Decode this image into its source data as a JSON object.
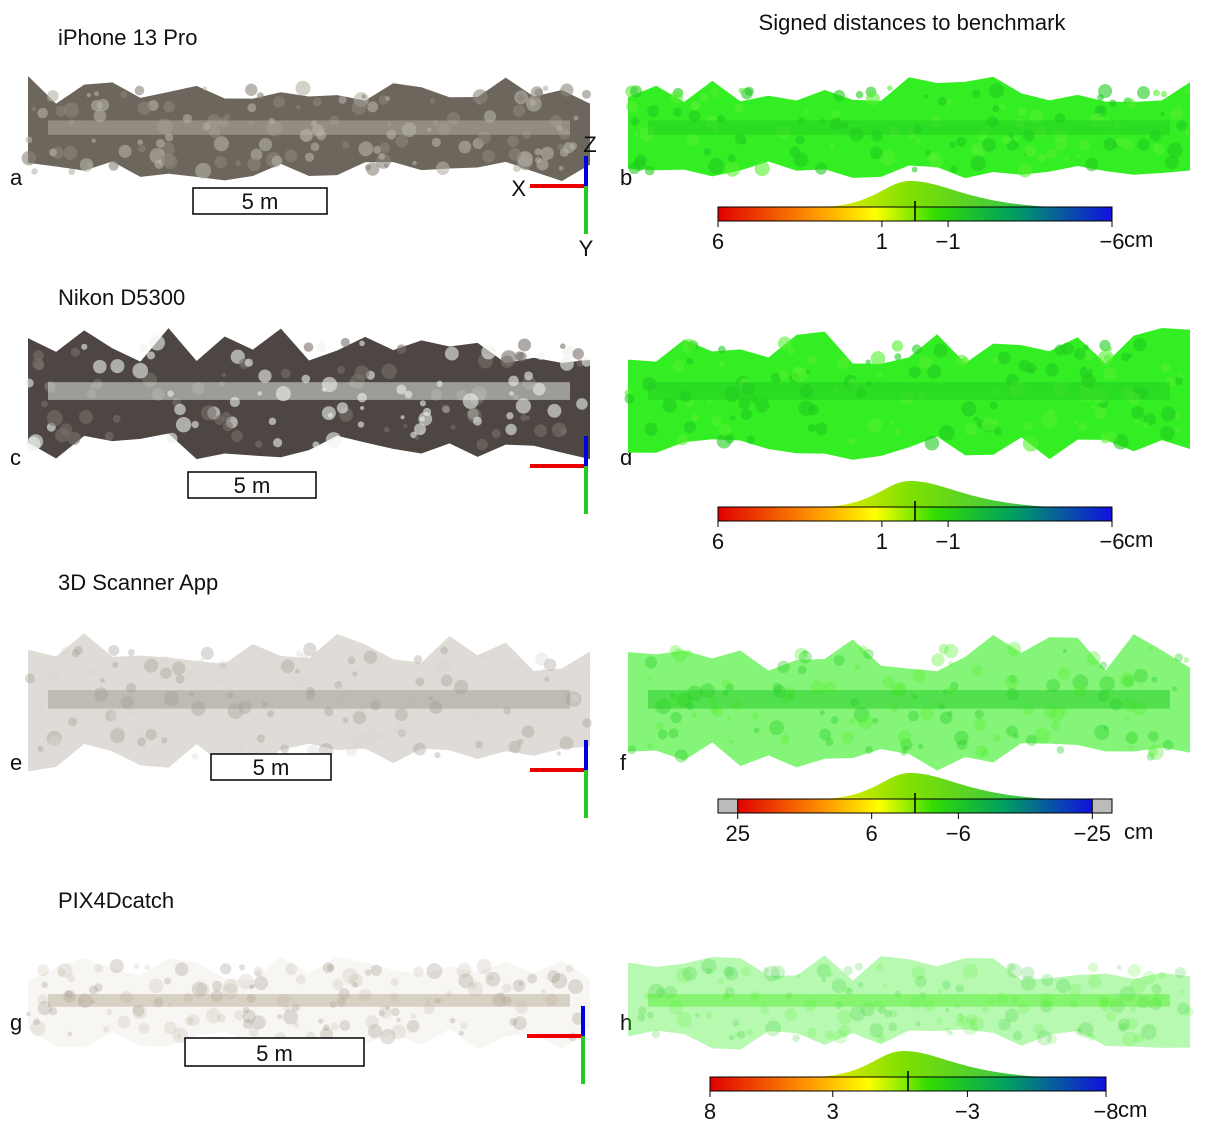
{
  "title": "Signed distances to benchmark",
  "rows": [
    {
      "name": "iPhone 13 Pro",
      "left_label": "a",
      "right_label": "b",
      "scale_bar": "5 m",
      "axes": {
        "x": "X",
        "y": "Y",
        "z": "Z"
      },
      "colorbar": {
        "ticks": [
          "6",
          "1",
          "−1",
          "−6"
        ],
        "unit": "cm"
      }
    },
    {
      "name": "Nikon D5300",
      "left_label": "c",
      "right_label": "d",
      "scale_bar": "5 m",
      "colorbar": {
        "ticks": [
          "6",
          "1",
          "−1",
          "−6"
        ],
        "unit": "cm"
      }
    },
    {
      "name": "3D Scanner App",
      "left_label": "e",
      "right_label": "f",
      "scale_bar": "5 m",
      "colorbar": {
        "ticks": [
          "25",
          "6",
          "−6",
          "−25"
        ],
        "unit": "cm"
      }
    },
    {
      "name": "PIX4Dcatch",
      "left_label": "g",
      "right_label": "h",
      "scale_bar": "5 m",
      "colorbar": {
        "ticks": [
          "8",
          "3",
          "−3",
          "−8"
        ],
        "unit": "cm"
      }
    }
  ]
}
